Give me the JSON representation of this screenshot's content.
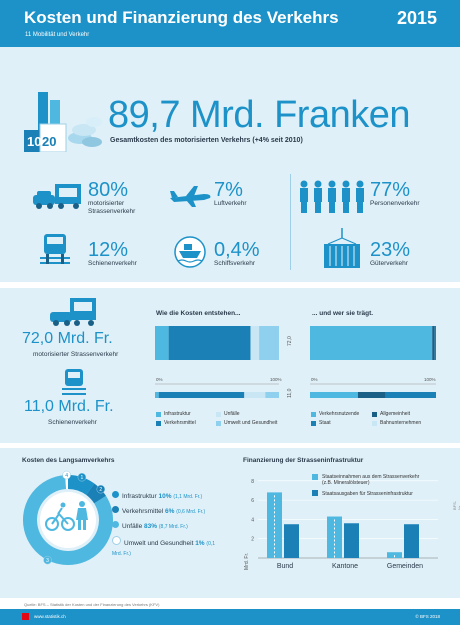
{
  "header": {
    "title": "Kosten und Finanzierung des Verkehrs",
    "subtitle": "11 Mobilität und Verkehr",
    "year": "2015"
  },
  "summary": {
    "value": "89,7 Mrd. Franken",
    "caption": "Gesamtkosten des motorisierten Verkehrs (+4% seit 2010)",
    "coin_labels": [
      "10",
      "20"
    ]
  },
  "shares": [
    {
      "pct": "80%",
      "label": "motorisierter Strassenverkehr",
      "icon": "car-truck-icon"
    },
    {
      "pct": "7%",
      "label": "Luftverkehr",
      "icon": "airplane-icon"
    },
    {
      "pct": "77%",
      "label": "Personenverkehr",
      "icon": "people-icon"
    },
    {
      "pct": "12%",
      "label": "Schienenverkehr",
      "icon": "train-icon"
    },
    {
      "pct": "0,4%",
      "label": "Schiffsverkehr",
      "icon": "ship-icon"
    },
    {
      "pct": "23%",
      "label": "Güterverkehr",
      "icon": "container-icon"
    }
  ],
  "road": {
    "value": "72,0 Mrd. Fr.",
    "caption": "motorisierter Strassenverkehr"
  },
  "rail": {
    "value": "11,0 Mrd. Fr.",
    "caption": "Schienenverkehr"
  },
  "origin_chart": {
    "title": "Wie die Kosten entstehen...",
    "axis_start": "0%",
    "axis_end": "100%",
    "road_total": "72,0",
    "rail_total": "11,0",
    "road": [
      0.11,
      0.66,
      0.07,
      0.16
    ],
    "rail": [
      0.03,
      0.69,
      0.17,
      0.11
    ],
    "legend": [
      "Infrastruktur",
      "Unfälle",
      "Verkehrsmittel",
      "Umwelt und Gesundheit"
    ],
    "colors": [
      "#4fb8e0",
      "#1a80b6",
      "#c8e6f4",
      "#8fd0ee"
    ]
  },
  "payer_chart": {
    "title": "... und wer sie trägt.",
    "axis_start": "0%",
    "axis_end": "100%",
    "road": [
      0.97,
      0.02,
      0.01
    ],
    "rail": [
      0.38,
      0.22,
      0.4
    ],
    "legend": [
      "Verkehrsnutzende",
      "Allgemeinheit",
      "Staat",
      "Bahnunternehmen"
    ],
    "colors": [
      "#4fb8e0",
      "#1a5f86",
      "#1a80b6",
      "#c8e6f4"
    ]
  },
  "slow_traffic": {
    "title": "Kosten des Langsamverkehrs",
    "items": [
      {
        "num": "1",
        "label": "Infrastruktur",
        "pct": "10%",
        "amount": "(1,1 Mrd. Fr.)"
      },
      {
        "num": "2",
        "label": "Verkehrsmittel",
        "pct": "6%",
        "amount": "(0,6 Mrd. Fr.)"
      },
      {
        "num": "3",
        "label": "Unfälle",
        "pct": "83%",
        "amount": "(8,7 Mrd. Fr.)"
      },
      {
        "num": "4",
        "label": "Umwelt und Gesundheit",
        "pct": "1%",
        "amount": "(0,1 Mrd. Fr.)"
      }
    ],
    "shares": [
      0.1,
      0.06,
      0.83,
      0.01
    ]
  },
  "chart_data": {
    "type": "bar",
    "title": "Finanzierung der Strasseninfrastruktur",
    "categories": [
      "Bund",
      "Kantone",
      "Gemeinden"
    ],
    "series": [
      {
        "name": "Staatseinnahmen aus dem Strassenverkehr (z.B. Mineralölsteuer)",
        "values": [
          6.8,
          4.3,
          0.6
        ],
        "color": "#4fb8e0"
      },
      {
        "name": "Staatsausgaben für Strasseninfrastruktur",
        "values": [
          3.5,
          3.6,
          3.5
        ],
        "color": "#1a80b6"
      }
    ],
    "ylabel": "Mrd. Fr.",
    "yticks": [
      "2",
      "4",
      "6",
      "8"
    ],
    "ylim": [
      0,
      8.5
    ]
  },
  "footer": {
    "source": "Quelle: BFS – Statistik der Kosten und der Finanzierung des Verkehrs (KFV)",
    "url": "www.statistik.ch",
    "copyright": "© BFS 2018",
    "side_note": "BFS-Nr. 1063-1500"
  }
}
